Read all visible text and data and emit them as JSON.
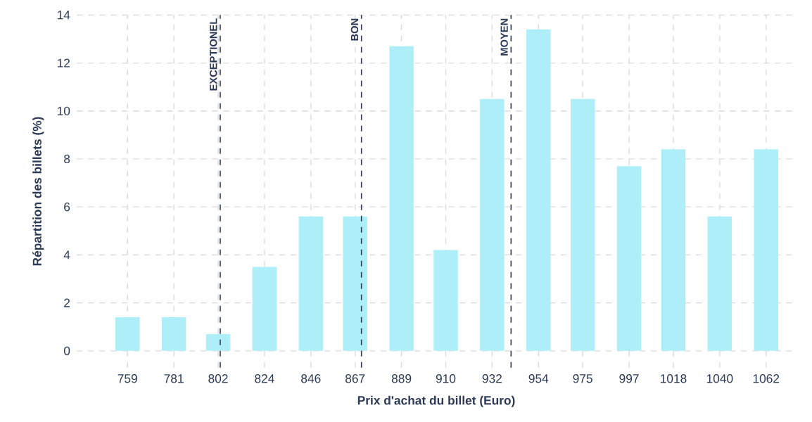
{
  "chart_data": {
    "type": "bar",
    "xlabel": "Prix d'achat du billet (Euro)",
    "ylabel": "Répartition des billets (%)",
    "x": [
      759,
      781,
      802,
      824,
      846,
      867,
      889,
      910,
      932,
      954,
      975,
      997,
      1018,
      1040,
      1062
    ],
    "values": [
      1.4,
      1.4,
      0.7,
      3.5,
      5.6,
      5.6,
      12.7,
      4.2,
      10.5,
      13.4,
      10.5,
      7.7,
      8.4,
      5.6,
      8.4
    ],
    "color": "#aeeef8",
    "xlim": [
      735,
      1076
    ],
    "xticks": [
      759,
      781,
      802,
      824,
      846,
      867,
      889,
      910,
      932,
      954,
      975,
      997,
      1018,
      1040,
      1062
    ],
    "ylim": [
      -0.7,
      14
    ],
    "yticks": [
      0,
      2,
      4,
      6,
      8,
      10,
      12,
      14
    ],
    "grid": true,
    "ref_lines": [
      {
        "axis": "x",
        "value": 803,
        "label": "EXCEPTIONEL",
        "color": "#2d3a55",
        "line_style": "dashed"
      },
      {
        "axis": "x",
        "value": 870,
        "label": "BON",
        "color": "#2d3a55",
        "line_style": "dashed"
      },
      {
        "axis": "x",
        "value": 941,
        "label": "MOYEN",
        "color": "#2d3a55",
        "line_style": "dashed"
      }
    ]
  }
}
